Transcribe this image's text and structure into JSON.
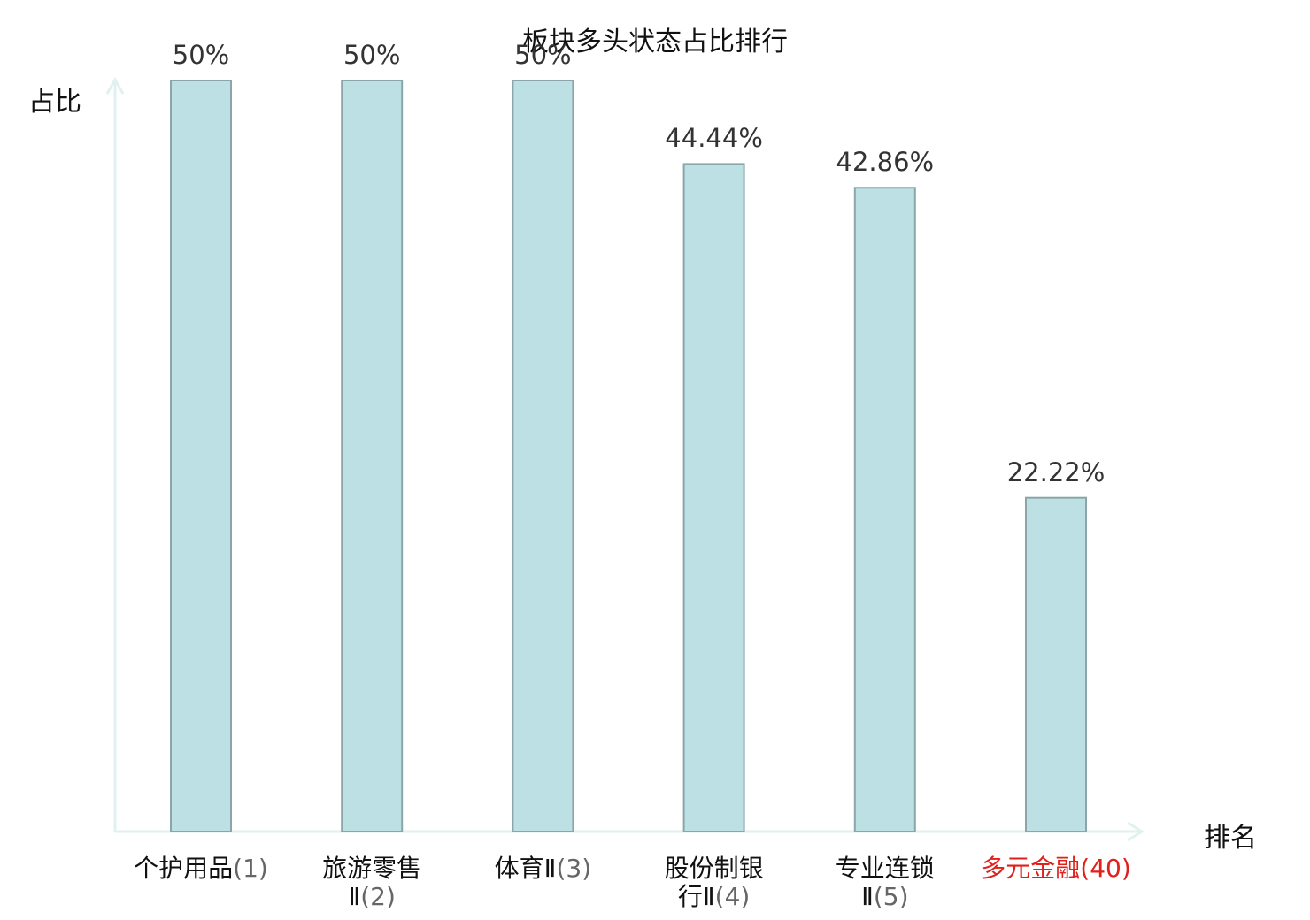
{
  "chart_data": {
    "type": "bar",
    "title": "板块多头状态占比排行",
    "xlabel": "排名",
    "ylabel": "占比",
    "categories": [
      {
        "name": "个护用品",
        "rank": "(1)"
      },
      {
        "name": "旅游零售Ⅱ",
        "rank": "(2)"
      },
      {
        "name": "体育Ⅱ",
        "rank": "(3)"
      },
      {
        "name": "股份制银行Ⅱ",
        "rank": "(4)"
      },
      {
        "name": "专业连锁Ⅱ",
        "rank": "(5)"
      },
      {
        "name": "多元金融",
        "rank": "(40)"
      }
    ],
    "values": [
      50,
      50,
      50,
      44.44,
      42.86,
      22.22
    ],
    "value_labels": [
      "50%",
      "50%",
      "50%",
      "44.44%",
      "42.86%",
      "22.22%"
    ],
    "highlight_index": 5,
    "ylim": [
      0,
      50
    ],
    "grid": false,
    "colors": {
      "bar_fill": "#bce0e3",
      "bar_stroke": "#8aa6a9",
      "axis": "#e0f2ef",
      "highlight_text": "#e0201b"
    }
  }
}
